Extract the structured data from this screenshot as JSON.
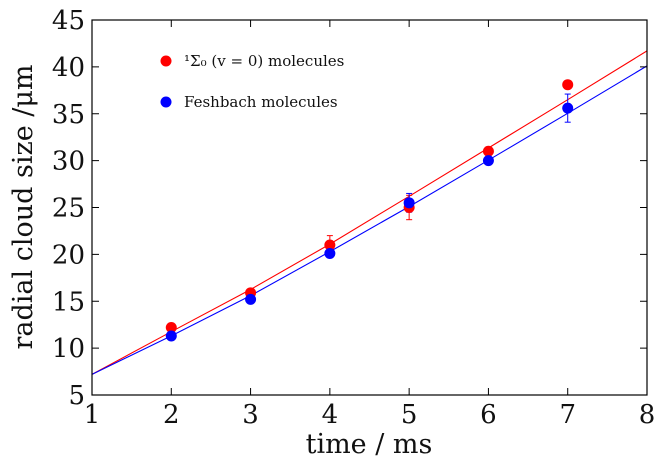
{
  "chart_data": {
    "type": "scatter",
    "title": "",
    "xlabel": "time / ms",
    "ylabel": "radial cloud size /μm",
    "xlim": [
      1,
      8
    ],
    "ylim": [
      5,
      45
    ],
    "x_ticks": [
      "1",
      "2",
      "3",
      "4",
      "5",
      "6",
      "7",
      "8"
    ],
    "y_ticks": [
      "5",
      "10",
      "15",
      "20",
      "25",
      "30",
      "35",
      "40",
      "45"
    ],
    "grid": false,
    "legend_position": "top-left",
    "series": [
      {
        "name": "¹Σ₀ (v = 0) molecules",
        "color": "#ff0000",
        "x": [
          2,
          3,
          4,
          5,
          6,
          7
        ],
        "y": [
          12.2,
          15.9,
          21.0,
          25.0,
          31.0,
          38.1
        ],
        "yerr": [
          0.4,
          0.4,
          1.0,
          1.3,
          0.4,
          0.4
        ],
        "fit": [
          [
            1,
            7.2
          ],
          [
            2,
            11.75
          ],
          [
            3,
            16.25
          ],
          [
            4,
            21.1
          ],
          [
            5,
            26.2
          ],
          [
            6,
            31.35
          ],
          [
            7,
            36.5
          ],
          [
            8,
            41.7
          ]
        ]
      },
      {
        "name": "Feshbach molecules",
        "color": "#0000ff",
        "x": [
          2,
          3,
          4,
          5,
          6,
          7
        ],
        "y": [
          11.3,
          15.2,
          20.1,
          25.5,
          30.0,
          35.6
        ],
        "yerr": [
          0.4,
          0.4,
          0.4,
          1.0,
          0.4,
          1.5
        ],
        "fit": [
          [
            1,
            7.2
          ],
          [
            2,
            11.3
          ],
          [
            3,
            15.6
          ],
          [
            4,
            20.3
          ],
          [
            5,
            25.1
          ],
          [
            6,
            30.05
          ],
          [
            7,
            35.05
          ],
          [
            8,
            40.1
          ]
        ]
      }
    ]
  }
}
